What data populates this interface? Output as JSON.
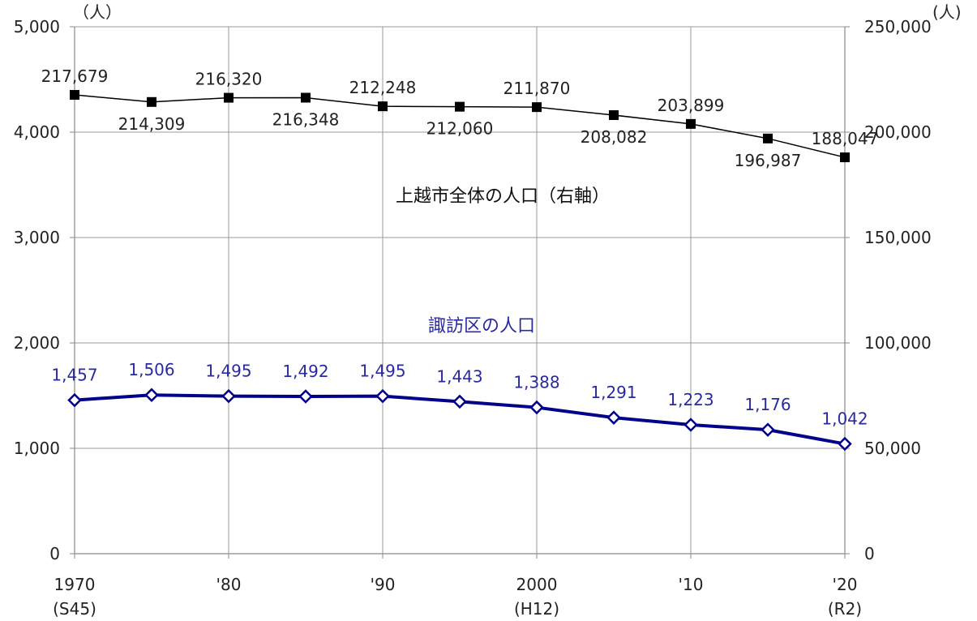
{
  "chart_data": {
    "type": "line",
    "x": [
      "1970",
      "1975",
      "1980",
      "1985",
      "1990",
      "1995",
      "2000",
      "2005",
      "2010",
      "2015",
      "2020"
    ],
    "x_tick_labels": [
      {
        "line1": "1970",
        "line2": "(S45)"
      },
      {
        "line1": "'80",
        "line2": ""
      },
      {
        "line1": "'90",
        "line2": ""
      },
      {
        "line1": "2000",
        "line2": "(H12)"
      },
      {
        "line1": "'10",
        "line2": ""
      },
      {
        "line1": "'20",
        "line2": "(R2)"
      }
    ],
    "y_left": {
      "unit": "（人）",
      "ylim": [
        0,
        5000
      ],
      "ticks": [
        "0",
        "1,000",
        "2,000",
        "3,000",
        "4,000",
        "5,000"
      ]
    },
    "y_right": {
      "unit": "(人)",
      "ylim": [
        0,
        250000
      ],
      "ticks": [
        "0",
        "50,000",
        "100,000",
        "150,000",
        "200,000",
        "250,000"
      ]
    },
    "series": [
      {
        "name": "上越市全体の人口（右軸）",
        "axis": "right",
        "color": "#000000",
        "marker": "square",
        "values": [
          217679,
          214309,
          216320,
          216348,
          212248,
          212060,
          211870,
          208082,
          203899,
          196987,
          188047
        ],
        "labels": [
          "217,679",
          "214,309",
          "216,320",
          "216,348",
          "212,248",
          "212,060",
          "211,870",
          "208,082",
          "203,899",
          "196,987",
          "188,047"
        ]
      },
      {
        "name": "諏訪区の人口",
        "axis": "left",
        "color": "#00008b",
        "marker": "diamond",
        "values": [
          1457,
          1506,
          1495,
          1492,
          1495,
          1443,
          1388,
          1291,
          1223,
          1176,
          1042
        ],
        "labels": [
          "1,457",
          "1,506",
          "1,495",
          "1,492",
          "1,495",
          "1,443",
          "1,388",
          "1,291",
          "1,223",
          "1,176",
          "1,042"
        ]
      }
    ],
    "grid": true,
    "label_color_left": "#2a2aa0",
    "label_color_right": "#222222"
  }
}
